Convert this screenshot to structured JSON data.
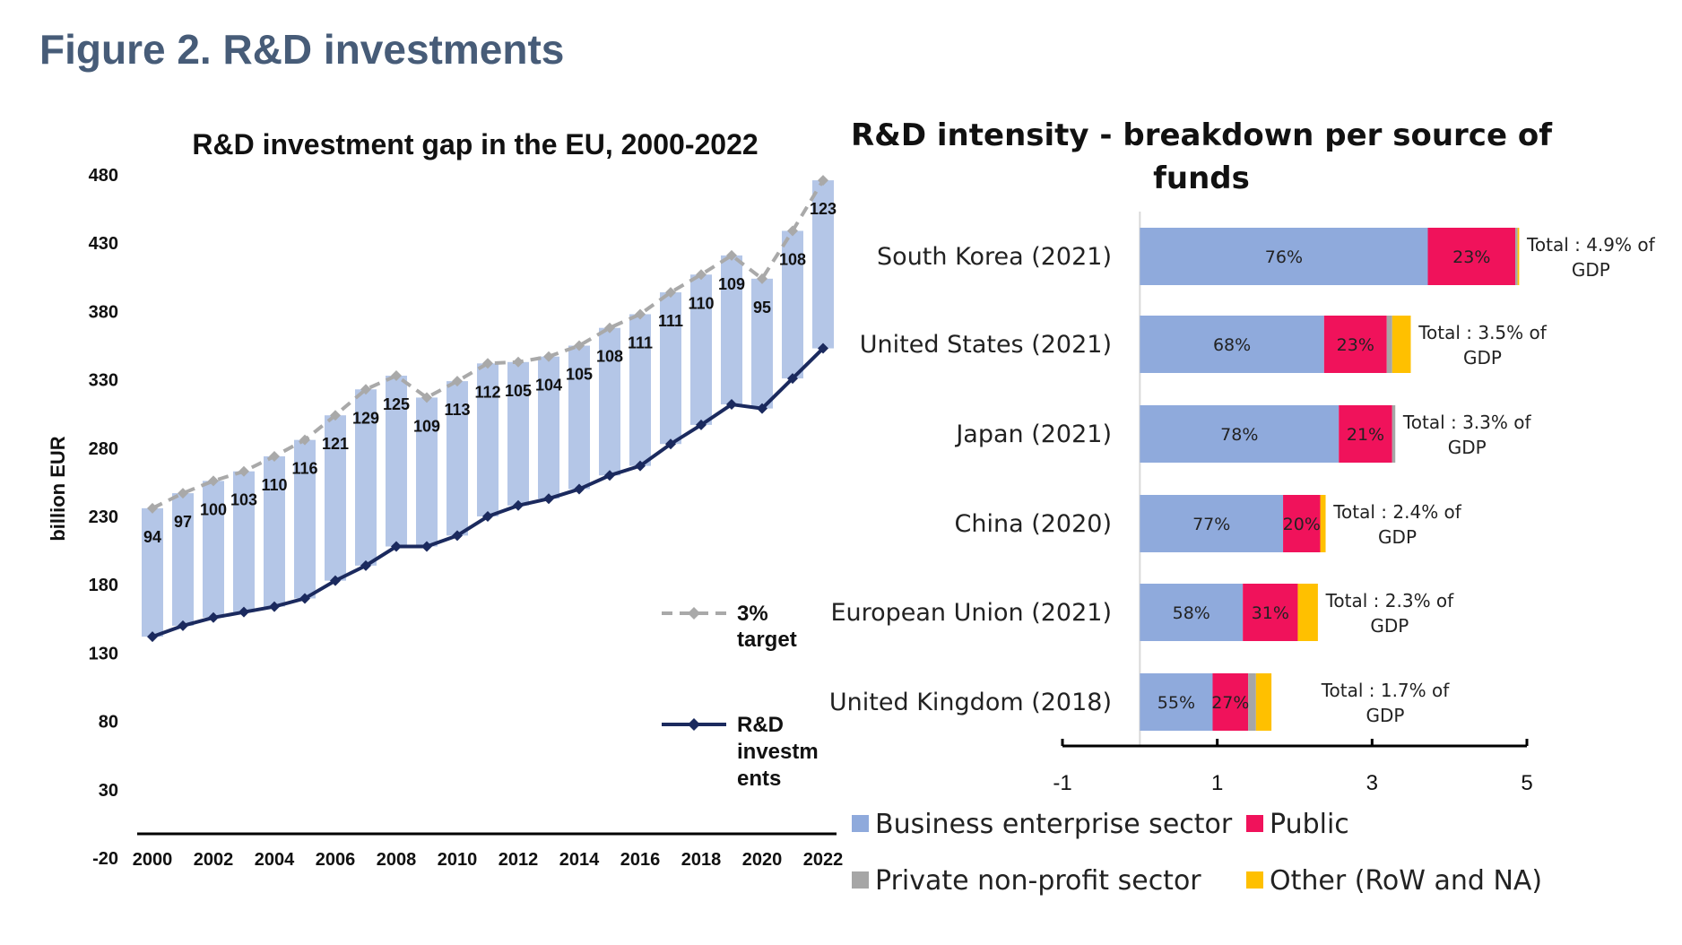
{
  "figure_title": "Figure 2. R&D investments",
  "chart_data": [
    {
      "type": "bar",
      "title": "R&D investment gap in the EU, 2000-2022",
      "ylabel": "billion EUR",
      "xlabel": "",
      "ylim": [
        -20,
        480
      ],
      "yticks": [
        "480",
        "430",
        "380",
        "330",
        "280",
        "230",
        "180",
        "130",
        "80",
        "30",
        "-20"
      ],
      "categories": [
        2000,
        2001,
        2002,
        2003,
        2004,
        2005,
        2006,
        2007,
        2008,
        2009,
        2010,
        2011,
        2012,
        2013,
        2014,
        2015,
        2016,
        2017,
        2018,
        2019,
        2020,
        2021,
        2022
      ],
      "xtick_labels": [
        "2000",
        "2002",
        "2004",
        "2006",
        "2008",
        "2010",
        "2012",
        "2014",
        "2016",
        "2018",
        "2020",
        "2022"
      ],
      "series": [
        {
          "name": "R&D investments",
          "style": "line",
          "color": "#1b2a5e",
          "values": [
            142,
            150,
            156,
            160,
            164,
            170,
            183,
            194,
            208,
            208,
            216,
            230,
            238,
            243,
            250,
            260,
            267,
            283,
            297,
            312,
            309,
            331,
            353
          ]
        },
        {
          "name": "3% target",
          "style": "dashed-line",
          "color": "#a9a9a9",
          "values": [
            236,
            247,
            256,
            263,
            274,
            286,
            304,
            323,
            333,
            317,
            329,
            342,
            343,
            347,
            355,
            368,
            378,
            394,
            407,
            421,
            404,
            439,
            476
          ]
        }
      ],
      "gap_bar_color": "#b4c6e7",
      "gap_labels": [
        "94",
        "97",
        "100",
        "103",
        "110",
        "116",
        "121",
        "129",
        "125",
        "109",
        "113",
        "112",
        "105",
        "104",
        "105",
        "108",
        "111",
        "111",
        "110",
        "109",
        "95",
        "108",
        "123"
      ],
      "legend": [
        {
          "label_lines": [
            "3%",
            "target"
          ],
          "style": "dashed",
          "color": "#a9a9a9"
        },
        {
          "label_lines": [
            "R&D",
            "investm",
            "ents"
          ],
          "style": "solid",
          "color": "#1b2a5e"
        }
      ]
    },
    {
      "type": "bar",
      "orientation": "horizontal",
      "stacked": true,
      "title_lines": [
        "R&D intensity - breakdown per source of",
        "funds"
      ],
      "xlim": [
        -1,
        5
      ],
      "xtick_labels": [
        "-1",
        "1",
        "3",
        "5"
      ],
      "categories": [
        "South Korea (2021)",
        "United States (2021)",
        "Japan (2021)",
        "China (2020)",
        "European Union (2021)",
        "United Kingdom (2018)"
      ],
      "series": [
        {
          "name": "Business enterprise sector",
          "color": "#8faadc",
          "values": [
            3.72,
            2.38,
            2.57,
            1.85,
            1.33,
            0.94
          ],
          "labels": [
            "76%",
            "68%",
            "78%",
            "77%",
            "58%",
            "55%"
          ]
        },
        {
          "name": "Public",
          "color": "#f0125b",
          "values": [
            1.13,
            0.81,
            0.69,
            0.48,
            0.71,
            0.46
          ],
          "labels": [
            "23%",
            "23%",
            "21%",
            "20%",
            "31%",
            "27%"
          ]
        },
        {
          "name": "Private non-profit sector",
          "color": "#a6a6a6",
          "values": [
            0.03,
            0.07,
            0.04,
            0.0,
            0.0,
            0.1
          ],
          "labels": [
            "",
            "",
            "",
            "",
            "",
            ""
          ]
        },
        {
          "name": "Other (RoW and NA)",
          "color": "#ffc000",
          "values": [
            0.02,
            0.24,
            0.0,
            0.07,
            0.26,
            0.2
          ],
          "labels": [
            "",
            "",
            "",
            "",
            "",
            ""
          ]
        }
      ],
      "total_labels": [
        [
          "Total : 4.9% of",
          "GDP"
        ],
        [
          "Total : 3.5% of",
          "GDP"
        ],
        [
          "Total : 3.3% of",
          "GDP"
        ],
        [
          "Total : 2.4% of",
          "GDP"
        ],
        [
          "Total : 2.3% of",
          "GDP"
        ],
        [
          "Total : 1.7% of",
          "GDP"
        ]
      ],
      "legend_placement": "bottom"
    }
  ]
}
